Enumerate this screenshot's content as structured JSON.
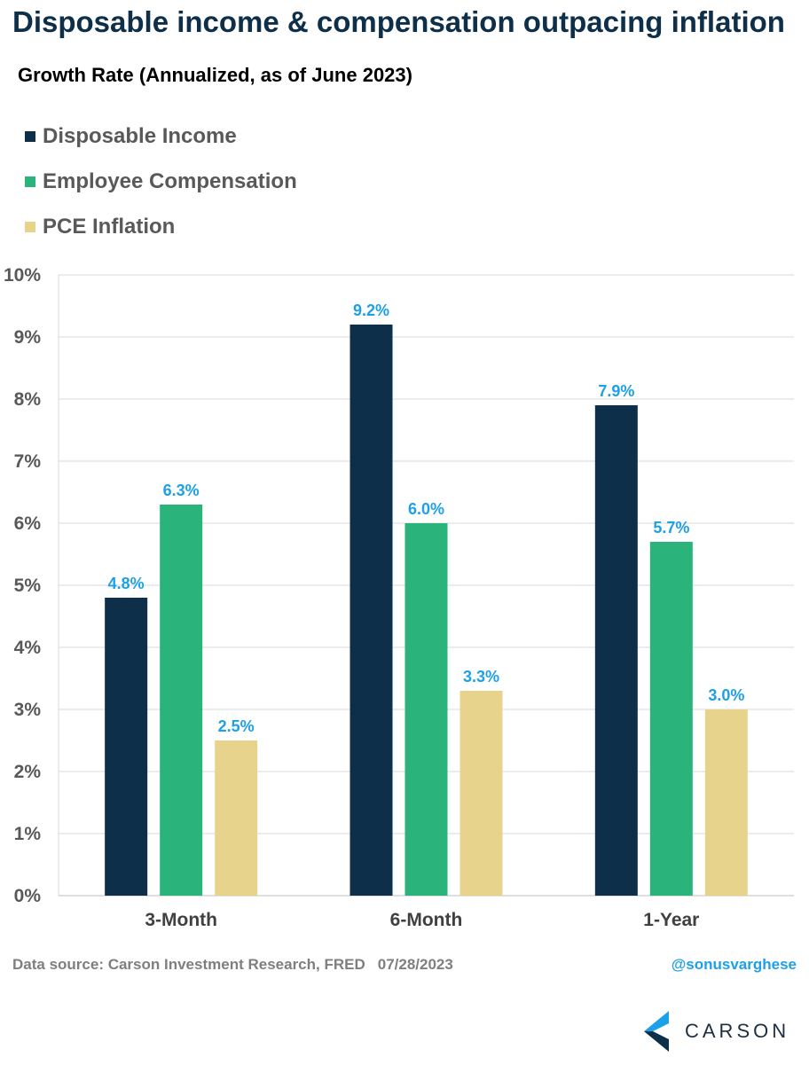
{
  "title": "Disposable income & compensation outpacing inflation",
  "subtitle": "Growth Rate (Annualized, as of June 2023)",
  "footer": {
    "source": "Data source: Carson Investment Research, FRED",
    "date": "07/28/2023",
    "handle": "@sonusvarghese",
    "logo_text": "CARSON"
  },
  "chart_data": {
    "type": "bar",
    "categories": [
      "3-Month",
      "6-Month",
      "1-Year"
    ],
    "series": [
      {
        "name": "Disposable Income",
        "color": "#0e2f4a",
        "values": [
          4.8,
          9.2,
          7.9
        ],
        "labels": [
          "4.8%",
          "9.2%",
          "7.9%"
        ]
      },
      {
        "name": "Employee Compensation",
        "color": "#2bb37c",
        "values": [
          6.3,
          6.0,
          5.7
        ],
        "labels": [
          "6.3%",
          "6.0%",
          "5.7%"
        ]
      },
      {
        "name": "PCE Inflation",
        "color": "#e8d38d",
        "values": [
          2.5,
          3.3,
          3.0
        ],
        "labels": [
          "2.5%",
          "3.3%",
          "3.0%"
        ]
      }
    ],
    "ylim": [
      0,
      10
    ],
    "yticks": [
      "0%",
      "1%",
      "2%",
      "3%",
      "4%",
      "5%",
      "6%",
      "7%",
      "8%",
      "9%",
      "10%"
    ],
    "grid": true,
    "legend_position": "top-left",
    "data_label_color": "#1ea0e8"
  }
}
